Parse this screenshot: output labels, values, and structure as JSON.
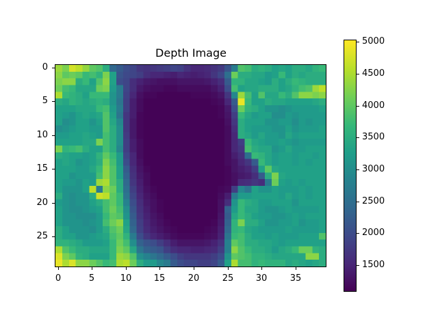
{
  "chart_data": {
    "type": "heatmap",
    "title": "Depth Image",
    "xlabel": "",
    "ylabel": "",
    "rows": 30,
    "cols": 40,
    "x_ticks": [
      0,
      5,
      10,
      15,
      20,
      25,
      30,
      35
    ],
    "y_ticks": [
      0,
      5,
      10,
      15,
      20,
      25
    ],
    "colormap": "viridis",
    "colorbar": {
      "vmin": 1080,
      "vmax": 5030,
      "ticks": [
        1500,
        2000,
        2500,
        3000,
        3500,
        4000,
        4500,
        5000
      ]
    },
    "values": [
      [
        4400,
        4200,
        4750,
        4600,
        4350,
        4000,
        3900,
        3500,
        2400,
        2200,
        2000,
        1900,
        1700,
        1650,
        1700,
        1750,
        1800,
        1900,
        1850,
        1650,
        1500,
        1500,
        1550,
        1650,
        1750,
        2100,
        2700,
        3900,
        3800,
        3500,
        3600,
        3500,
        3300,
        3400,
        3300,
        3500,
        3500,
        3400,
        3600,
        3700
      ],
      [
        4300,
        4000,
        4100,
        4000,
        3700,
        3800,
        3600,
        4200,
        3300,
        2100,
        1950,
        1900,
        1800,
        1600,
        1500,
        1500,
        1450,
        1400,
        1500,
        1450,
        1400,
        1450,
        1500,
        1700,
        1900,
        2500,
        4100,
        3500,
        3500,
        3400,
        3400,
        3200,
        3300,
        3700,
        3300,
        3500,
        3400,
        3500,
        3500,
        3500
      ],
      [
        4200,
        4300,
        4300,
        3500,
        3700,
        3300,
        3900,
        4300,
        3300,
        2000,
        1900,
        1600,
        1450,
        1350,
        1300,
        1250,
        1250,
        1250,
        1300,
        1300,
        1300,
        1300,
        1350,
        1450,
        1600,
        2200,
        3600,
        3600,
        3400,
        3400,
        3300,
        3200,
        3500,
        3300,
        3500,
        3700,
        3600,
        3500,
        3500,
        3500
      ],
      [
        4100,
        3800,
        3700,
        3400,
        3400,
        3400,
        4100,
        4200,
        3200,
        2700,
        1900,
        1600,
        1350,
        1250,
        1200,
        1200,
        1150,
        1150,
        1200,
        1200,
        1200,
        1200,
        1200,
        1300,
        1450,
        2000,
        3800,
        3300,
        3400,
        3400,
        3500,
        3500,
        3500,
        3300,
        3400,
        3600,
        3800,
        3900,
        4400,
        4600
      ],
      [
        4500,
        3700,
        3600,
        3500,
        3300,
        3700,
        3700,
        3700,
        3100,
        2700,
        1850,
        1500,
        1250,
        1150,
        1150,
        1100,
        1100,
        1100,
        1100,
        1100,
        1150,
        1150,
        1150,
        1200,
        1300,
        1700,
        2900,
        4400,
        3800,
        3300,
        3900,
        3400,
        3400,
        3700,
        3500,
        3900,
        4300,
        4300,
        4200,
        4300
      ],
      [
        3500,
        3400,
        3600,
        3500,
        3400,
        3500,
        3600,
        3500,
        3100,
        2600,
        1800,
        1400,
        1200,
        1100,
        1100,
        1100,
        1100,
        1100,
        1100,
        1100,
        1100,
        1100,
        1100,
        1150,
        1200,
        1500,
        2200,
        4900,
        3700,
        3300,
        3300,
        3500,
        3400,
        3400,
        3300,
        3300,
        3300,
        3300,
        3400,
        3500
      ],
      [
        3300,
        3300,
        3300,
        3400,
        3400,
        3400,
        3700,
        3800,
        3200,
        2700,
        1800,
        1400,
        1200,
        1100,
        1100,
        1100,
        1100,
        1100,
        1100,
        1100,
        1100,
        1100,
        1100,
        1100,
        1150,
        1350,
        2000,
        4100,
        3600,
        3500,
        3300,
        3100,
        3100,
        3000,
        3100,
        3200,
        3200,
        3200,
        3200,
        3300
      ],
      [
        3300,
        3200,
        3100,
        3300,
        3400,
        3300,
        3400,
        3900,
        3300,
        2600,
        1700,
        1400,
        1150,
        1100,
        1100,
        1100,
        1100,
        1100,
        1100,
        1100,
        1100,
        1100,
        1100,
        1100,
        1150,
        1300,
        1800,
        3700,
        3400,
        3200,
        3300,
        3300,
        3000,
        3000,
        3200,
        3100,
        3200,
        3200,
        3200,
        3200
      ],
      [
        3300,
        3000,
        3100,
        3300,
        3300,
        3100,
        3300,
        3900,
        3400,
        2900,
        1700,
        1350,
        1150,
        1100,
        1100,
        1100,
        1100,
        1100,
        1100,
        1100,
        1100,
        1100,
        1100,
        1100,
        1100,
        1250,
        1700,
        3500,
        3300,
        3300,
        3300,
        3100,
        3100,
        3200,
        3200,
        3000,
        3200,
        3100,
        3200,
        3200
      ],
      [
        3000,
        3100,
        3200,
        3300,
        3300,
        3200,
        3200,
        3900,
        3500,
        3000,
        1700,
        1350,
        1150,
        1100,
        1100,
        1100,
        1100,
        1100,
        1100,
        1100,
        1100,
        1100,
        1100,
        1100,
        1100,
        1200,
        1600,
        3500,
        3300,
        3200,
        3200,
        3200,
        3100,
        3100,
        3300,
        3100,
        3200,
        3200,
        3200,
        3300
      ],
      [
        3200,
        3200,
        3300,
        3300,
        3400,
        3300,
        3200,
        3800,
        3500,
        3000,
        1750,
        1350,
        1150,
        1100,
        1100,
        1100,
        1100,
        1100,
        1100,
        1100,
        1100,
        1100,
        1100,
        1100,
        1100,
        1200,
        1500,
        3500,
        3400,
        3200,
        3400,
        3200,
        3200,
        3100,
        3400,
        3200,
        3300,
        3300,
        3300,
        3300
      ],
      [
        3300,
        3300,
        3300,
        3300,
        3400,
        3400,
        4200,
        3800,
        3500,
        3000,
        1800,
        1400,
        1200,
        1100,
        1100,
        1100,
        1100,
        1100,
        1100,
        1100,
        1100,
        1100,
        1100,
        1100,
        1100,
        1200,
        1500,
        1800,
        3700,
        3400,
        3300,
        3200,
        3200,
        3300,
        3200,
        3100,
        3200,
        3200,
        3200,
        3200
      ],
      [
        4200,
        3600,
        3700,
        3800,
        3500,
        3300,
        3300,
        3800,
        3500,
        2900,
        1800,
        1400,
        1200,
        1100,
        1100,
        1100,
        1100,
        1100,
        1100,
        1100,
        1100,
        1100,
        1100,
        1100,
        1100,
        1200,
        1500,
        1700,
        3800,
        3500,
        3400,
        3400,
        3100,
        3200,
        3400,
        3200,
        3200,
        3300,
        3300,
        3300
      ],
      [
        3500,
        3400,
        3300,
        3300,
        3200,
        3300,
        3600,
        4000,
        3700,
        3200,
        1900,
        1500,
        1200,
        1100,
        1100,
        1100,
        1100,
        1100,
        1100,
        1100,
        1100,
        1100,
        1100,
        1100,
        1100,
        1200,
        1400,
        1600,
        2500,
        3700,
        3600,
        3400,
        3200,
        3300,
        3300,
        3200,
        3300,
        3300,
        3200,
        3300
      ],
      [
        3300,
        3400,
        3300,
        3100,
        3200,
        3300,
        3500,
        4200,
        3800,
        3200,
        2000,
        1500,
        1250,
        1100,
        1100,
        1100,
        1100,
        1100,
        1100,
        1100,
        1100,
        1100,
        1100,
        1100,
        1100,
        1200,
        1300,
        1500,
        1700,
        2200,
        3700,
        3400,
        3200,
        3300,
        3300,
        3200,
        3300,
        3200,
        3300,
        3300
      ],
      [
        3300,
        3300,
        3300,
        3200,
        3200,
        3400,
        3700,
        4300,
        3900,
        3300,
        2200,
        1600,
        1300,
        1150,
        1100,
        1100,
        1100,
        1100,
        1100,
        1100,
        1100,
        1100,
        1100,
        1100,
        1100,
        1150,
        1300,
        1400,
        1500,
        1800,
        3300,
        4000,
        3400,
        3300,
        3300,
        3300,
        3300,
        3300,
        3300,
        3300
      ],
      [
        3300,
        3300,
        3100,
        3200,
        3200,
        3200,
        3800,
        4300,
        3900,
        3300,
        2300,
        1650,
        1350,
        1200,
        1100,
        1100,
        1100,
        1100,
        1100,
        1100,
        1100,
        1100,
        1100,
        1100,
        1100,
        1150,
        1250,
        1350,
        1400,
        1600,
        2200,
        3500,
        4200,
        3400,
        3300,
        3300,
        3300,
        3300,
        3300,
        3300
      ],
      [
        3300,
        3200,
        3200,
        3100,
        3300,
        3200,
        4400,
        4500,
        3900,
        3500,
        2400,
        1700,
        1400,
        1200,
        1100,
        1100,
        1100,
        1100,
        1100,
        1100,
        1100,
        1100,
        1100,
        1100,
        1100,
        1150,
        1250,
        1550,
        1600,
        1700,
        1600,
        2700,
        4100,
        3300,
        3200,
        3300,
        3200,
        3300,
        3300,
        3300
      ],
      [
        3300,
        3100,
        3100,
        3100,
        3300,
        4600,
        2700,
        4300,
        4100,
        3500,
        2500,
        1800,
        1450,
        1250,
        1150,
        1100,
        1100,
        1100,
        1100,
        1100,
        1100,
        1100,
        1100,
        1100,
        1150,
        1200,
        1800,
        2900,
        2600,
        3300,
        3100,
        3100,
        3300,
        3200,
        3200,
        3200,
        3300,
        3200,
        3300,
        3300
      ],
      [
        3500,
        3100,
        3000,
        3100,
        3100,
        3500,
        4700,
        4600,
        4000,
        3700,
        2600,
        1900,
        1500,
        1300,
        1200,
        1100,
        1100,
        1100,
        1100,
        1100,
        1100,
        1100,
        1100,
        1100,
        1200,
        1400,
        2700,
        3200,
        3200,
        3300,
        3300,
        3300,
        3300,
        3200,
        3400,
        3200,
        3300,
        3200,
        3300,
        3300
      ],
      [
        3200,
        3100,
        3000,
        3100,
        3100,
        3300,
        3500,
        3800,
        4000,
        3700,
        2800,
        2000,
        1600,
        1350,
        1250,
        1150,
        1100,
        1100,
        1100,
        1100,
        1100,
        1100,
        1100,
        1100,
        1250,
        1600,
        3100,
        3700,
        3500,
        3400,
        3200,
        3200,
        3300,
        3300,
        3300,
        3100,
        3300,
        3300,
        3300,
        3300
      ],
      [
        3300,
        3100,
        3000,
        3000,
        3100,
        3200,
        3300,
        3800,
        4100,
        3800,
        3000,
        2100,
        1650,
        1400,
        1250,
        1150,
        1100,
        1100,
        1100,
        1100,
        1100,
        1100,
        1100,
        1100,
        1250,
        2300,
        3200,
        3700,
        3400,
        3400,
        3200,
        3100,
        3100,
        3200,
        3300,
        3200,
        3200,
        3200,
        3200,
        3300
      ],
      [
        3300,
        3100,
        3100,
        3000,
        3000,
        3000,
        3200,
        3700,
        4000,
        3900,
        3100,
        2200,
        1700,
        1450,
        1300,
        1200,
        1100,
        1100,
        1100,
        1100,
        1100,
        1100,
        1100,
        1100,
        1300,
        2200,
        3400,
        3700,
        3500,
        3300,
        3200,
        3200,
        3100,
        3100,
        3200,
        3300,
        3200,
        3300,
        3300,
        3300
      ],
      [
        3300,
        3100,
        3100,
        3100,
        3000,
        3100,
        3200,
        3800,
        4100,
        4300,
        3300,
        2300,
        1800,
        1500,
        1350,
        1250,
        1150,
        1100,
        1100,
        1100,
        1100,
        1100,
        1100,
        1150,
        1350,
        2300,
        3600,
        4200,
        3500,
        3500,
        3300,
        3100,
        3100,
        3200,
        3200,
        3300,
        3100,
        3200,
        3200,
        3300
      ],
      [
        3500,
        3300,
        3100,
        3100,
        3100,
        3000,
        3200,
        3500,
        3900,
        4100,
        3400,
        2400,
        1850,
        1550,
        1400,
        1300,
        1200,
        1150,
        1100,
        1100,
        1100,
        1100,
        1150,
        1200,
        1400,
        2400,
        3600,
        3700,
        3400,
        3300,
        3200,
        3200,
        3200,
        3200,
        3300,
        3200,
        3200,
        3200,
        3200,
        3300
      ],
      [
        3500,
        3300,
        3300,
        3100,
        3100,
        3200,
        3300,
        3400,
        3800,
        4000,
        3600,
        2700,
        2000,
        1700,
        1500,
        1400,
        1300,
        1200,
        1150,
        1150,
        1150,
        1150,
        1200,
        1250,
        1450,
        2600,
        3700,
        3800,
        3500,
        3300,
        3300,
        3200,
        3300,
        3200,
        3200,
        3200,
        3300,
        3300,
        3300,
        3900
      ],
      [
        3600,
        3600,
        3500,
        3400,
        3200,
        3200,
        3200,
        3300,
        3700,
        4100,
        3800,
        3000,
        2300,
        2100,
        2000,
        1800,
        1600,
        1400,
        1300,
        1300,
        1300,
        1300,
        1350,
        1450,
        1650,
        2800,
        4000,
        3800,
        3500,
        3500,
        3400,
        3400,
        3300,
        3200,
        3300,
        3300,
        3300,
        3300,
        3300,
        3300
      ],
      [
        4500,
        3900,
        3700,
        3500,
        3500,
        3400,
        3400,
        3400,
        3700,
        4200,
        4000,
        3400,
        2600,
        2300,
        2200,
        2100,
        1800,
        1600,
        1500,
        1500,
        1450,
        1450,
        1500,
        1550,
        1800,
        2800,
        4300,
        3900,
        3700,
        3500,
        3500,
        3400,
        3200,
        3400,
        3500,
        3700,
        4100,
        4100,
        3600,
        3500
      ],
      [
        4800,
        4200,
        4000,
        3600,
        3500,
        3300,
        3300,
        3300,
        3700,
        4400,
        4300,
        3900,
        3000,
        2800,
        2600,
        2400,
        2200,
        2000,
        1800,
        1700,
        1700,
        1700,
        1700,
        1800,
        2000,
        3100,
        4000,
        3900,
        3800,
        3600,
        3600,
        3500,
        3400,
        3400,
        3400,
        3400,
        3400,
        4300,
        4300,
        3500
      ],
      [
        4900,
        4500,
        4800,
        4300,
        4300,
        4100,
        3900,
        3700,
        3800,
        4500,
        4600,
        4100,
        3500,
        3200,
        3200,
        2900,
        2700,
        2200,
        2000,
        1900,
        1900,
        1800,
        1800,
        1900,
        2200,
        3300,
        4500,
        3800,
        3800,
        3600,
        3700,
        3600,
        3600,
        3600,
        3400,
        3500,
        3400,
        3300,
        3400,
        3500
      ]
    ]
  },
  "title": "Depth Image",
  "axes": {
    "x_ticks": [
      "0",
      "5",
      "10",
      "15",
      "20",
      "25",
      "30",
      "35"
    ],
    "y_ticks": [
      "0",
      "5",
      "10",
      "15",
      "20",
      "25"
    ]
  },
  "colorbar": {
    "ticks": [
      "5000",
      "4500",
      "4000",
      "3500",
      "3000",
      "2500",
      "2000",
      "1500"
    ]
  }
}
